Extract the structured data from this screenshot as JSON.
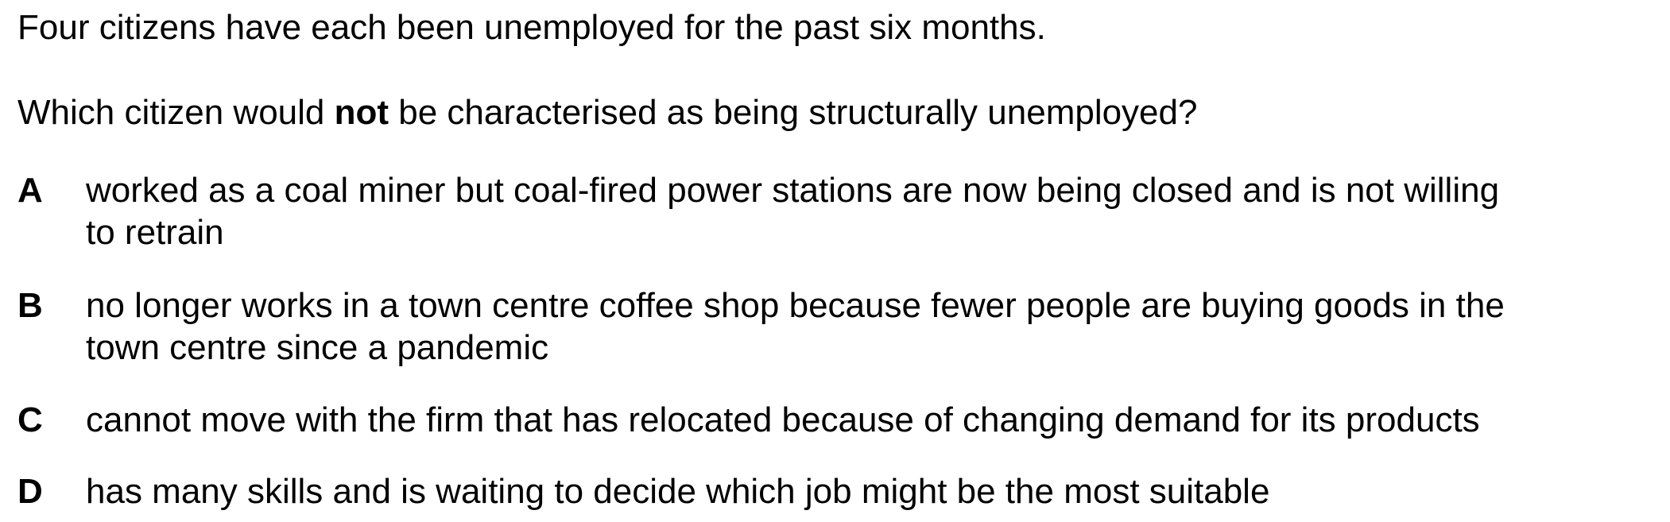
{
  "intro": "Four citizens have each been unemployed for the past six months.",
  "question": {
    "before": "Which citizen would ",
    "emphasis": "not",
    "after": " be characterised as being structurally unemployed?"
  },
  "options": [
    {
      "letter": "A",
      "line1": "worked as a coal miner but coal-fired power stations are now being closed and is not willing",
      "line2": "to retrain"
    },
    {
      "letter": "B",
      "line1": "no longer works in a town centre coffee shop because fewer people are buying goods in the",
      "line2": "town centre since a pandemic"
    },
    {
      "letter": "C",
      "line1": "cannot move with the firm that has relocated because of changing demand for its products"
    },
    {
      "letter": "D",
      "line1": "has many skills and is waiting to decide which job might be the most suitable"
    }
  ]
}
